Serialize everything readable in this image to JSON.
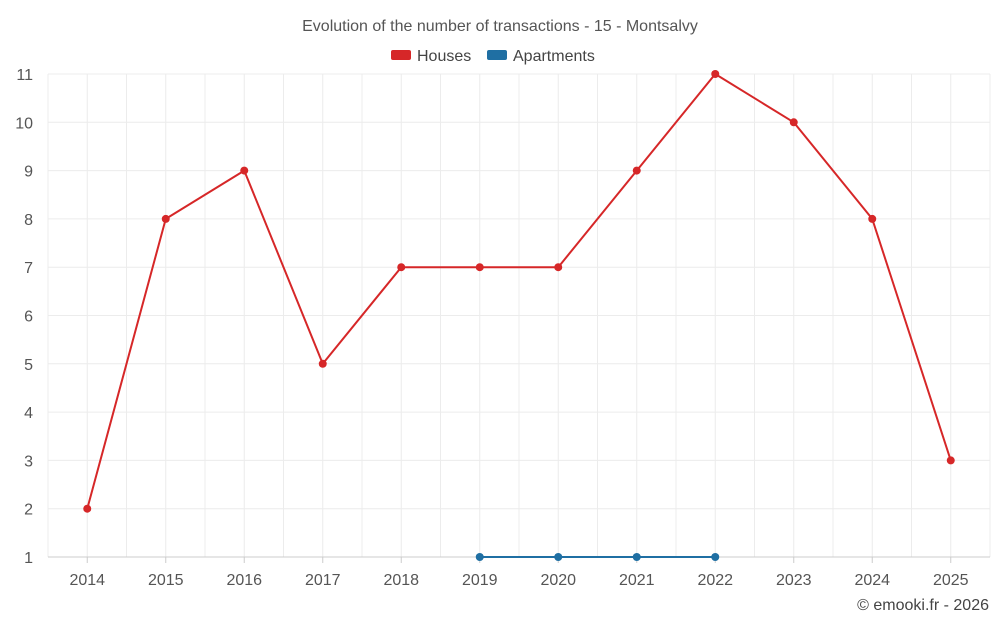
{
  "chart_data": {
    "type": "line",
    "title": "Evolution of the number of transactions - 15 - Montsalvy",
    "xlabel": "",
    "ylabel": "",
    "categories": [
      "2014",
      "2015",
      "2016",
      "2017",
      "2018",
      "2019",
      "2020",
      "2021",
      "2022",
      "2023",
      "2024",
      "2025"
    ],
    "ylim": [
      1,
      11
    ],
    "yticks": [
      "1",
      "2",
      "3",
      "4",
      "5",
      "6",
      "7",
      "8",
      "9",
      "10",
      "11"
    ],
    "grid": true,
    "legend_position": "top-center",
    "series": [
      {
        "name": "Houses",
        "color": "#d62728",
        "values": [
          2,
          8,
          9,
          5,
          7,
          7,
          7,
          9,
          11,
          10,
          8,
          3
        ]
      },
      {
        "name": "Apartments",
        "color": "#1f6fa3",
        "values": [
          null,
          null,
          null,
          null,
          null,
          1,
          1,
          1,
          1,
          null,
          null,
          null
        ]
      }
    ],
    "credit": "© emooki.fr - 2026"
  }
}
